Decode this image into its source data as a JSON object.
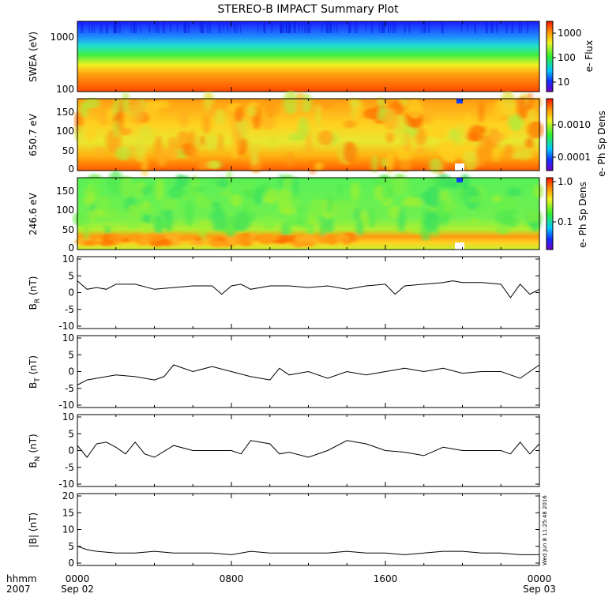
{
  "title": "STEREO-B IMPACT Summary Plot",
  "x_axis": {
    "row1_labels": [
      "0000",
      "0800",
      "1600",
      "0000"
    ],
    "row2_labels": [
      "Sep 02",
      "Sep 03"
    ],
    "left_label_1": "hhmm",
    "left_label_2": "2007"
  },
  "stamp": "Wed Jun  8 11:25:48 2016",
  "colors": {
    "trace": "#000000",
    "frame": "#000000",
    "background": "#ffffff"
  },
  "chart_data": [
    {
      "type": "heatmap",
      "id": "swea",
      "ylabel": "SWEA (eV)",
      "yscale": "log",
      "ytick_labels": [
        "1000",
        "100"
      ],
      "colorbar_label": "e- Flux",
      "colorbar_scale": "log",
      "colorbar_ticks": [
        "1000",
        "100",
        "10"
      ],
      "colormap": "rainbow (blue-low, red-high)",
      "x_range": [
        "0000",
        "0000"
      ]
    },
    {
      "type": "heatmap",
      "id": "pad650",
      "ylabel": "650.7 eV",
      "ylim": [
        0,
        180
      ],
      "ytick_labels": [
        "150",
        "100",
        "50",
        "0"
      ],
      "colorbar_label": "e- Ph Sp Dens",
      "colorbar_scale": "log",
      "colorbar_ticks": [
        "0.0010",
        "0.0001"
      ],
      "colormap": "rainbow (blue-low, red-high)"
    },
    {
      "type": "heatmap",
      "id": "pad246",
      "ylabel": "246.6 eV",
      "ylim": [
        0,
        180
      ],
      "ytick_labels": [
        "150",
        "100",
        "50",
        "0"
      ],
      "colorbar_label": "e- Ph Sp Dens",
      "colorbar_scale": "log",
      "colorbar_ticks": [
        "1.0",
        "0.1"
      ],
      "colormap": "rainbow (blue-low, red-high)"
    },
    {
      "type": "line",
      "id": "br",
      "ylabel": "B",
      "ylabel_sub": "R",
      "ylabel_unit": "(nT)",
      "ylim": [
        -10,
        10
      ],
      "ytick_labels": [
        "10",
        "5",
        "0",
        "-5",
        "-10"
      ],
      "x": [
        0,
        0.5,
        1,
        1.5,
        2,
        3,
        4,
        5,
        6,
        7,
        7.5,
        8,
        8.5,
        9,
        10,
        11,
        12,
        13,
        14,
        15,
        16,
        16.5,
        17,
        18,
        19,
        19.5,
        20,
        21,
        22,
        22.5,
        23,
        23.5,
        24
      ],
      "y": [
        3.5,
        1,
        1.5,
        1,
        2.5,
        2.5,
        1,
        1.5,
        2,
        2,
        -0.5,
        2,
        2.5,
        1,
        2,
        2,
        1.5,
        2,
        1,
        2,
        2.5,
        -0.5,
        2,
        2.5,
        3,
        3.5,
        3,
        3,
        2.5,
        -1.5,
        2.5,
        -0.5,
        1
      ]
    },
    {
      "type": "line",
      "id": "bt",
      "ylabel": "B",
      "ylabel_sub": "T",
      "ylabel_unit": "(nT)",
      "ylim": [
        -10,
        10
      ],
      "ytick_labels": [
        "10",
        "5",
        "0",
        "-5",
        "-10"
      ],
      "x": [
        0,
        0.5,
        1,
        1.5,
        2,
        3,
        4,
        4.5,
        5,
        6,
        7,
        8,
        9,
        10,
        10.5,
        11,
        12,
        13,
        14,
        15,
        16,
        17,
        18,
        19,
        20,
        21,
        22,
        23,
        24
      ],
      "y": [
        -4,
        -2.5,
        -2,
        -1.5,
        -1,
        -1.5,
        -2.5,
        -1.5,
        2,
        0,
        1.5,
        0,
        -1.5,
        -2.5,
        1,
        -1,
        0,
        -2,
        0,
        -1,
        0,
        1,
        0,
        1,
        -0.5,
        0,
        0,
        -2,
        2
      ]
    },
    {
      "type": "line",
      "id": "bn",
      "ylabel": "B",
      "ylabel_sub": "N",
      "ylabel_unit": "(nT)",
      "ylim": [
        -10,
        10
      ],
      "ytick_labels": [
        "10",
        "5",
        "0",
        "-5",
        "-10"
      ],
      "x": [
        0,
        0.5,
        1,
        1.5,
        2,
        2.5,
        3,
        3.5,
        4,
        5,
        6,
        7,
        8,
        8.5,
        9,
        10,
        10.5,
        11,
        12,
        13,
        14,
        15,
        16,
        17,
        18,
        19,
        20,
        21,
        22,
        22.5,
        23,
        23.5,
        24
      ],
      "y": [
        1.5,
        -2,
        2,
        2.5,
        1,
        -1,
        2.5,
        -1,
        -2,
        1.5,
        0,
        0,
        0,
        -1,
        3,
        2,
        -1,
        -0.5,
        -2,
        0,
        3,
        2,
        0,
        -0.5,
        -1.5,
        1,
        0,
        0,
        0,
        -1,
        2.5,
        -1,
        2
      ]
    },
    {
      "type": "line",
      "id": "bmag",
      "ylabel": "|B| (nT)",
      "ylim": [
        0,
        20
      ],
      "ytick_labels": [
        "20",
        "15",
        "10",
        "5",
        "0"
      ],
      "x": [
        0,
        0.5,
        1,
        2,
        3,
        4,
        5,
        6,
        7,
        8,
        9,
        10,
        11,
        12,
        13,
        14,
        15,
        16,
        17,
        18,
        19,
        20,
        21,
        22,
        23,
        24
      ],
      "y": [
        5,
        4,
        3.5,
        3,
        3,
        3.5,
        3,
        3,
        3,
        2.5,
        3.5,
        3,
        3,
        3,
        3,
        3.5,
        3,
        3,
        2.5,
        3,
        3.5,
        3.5,
        3,
        3,
        2.5,
        2.5
      ]
    }
  ]
}
